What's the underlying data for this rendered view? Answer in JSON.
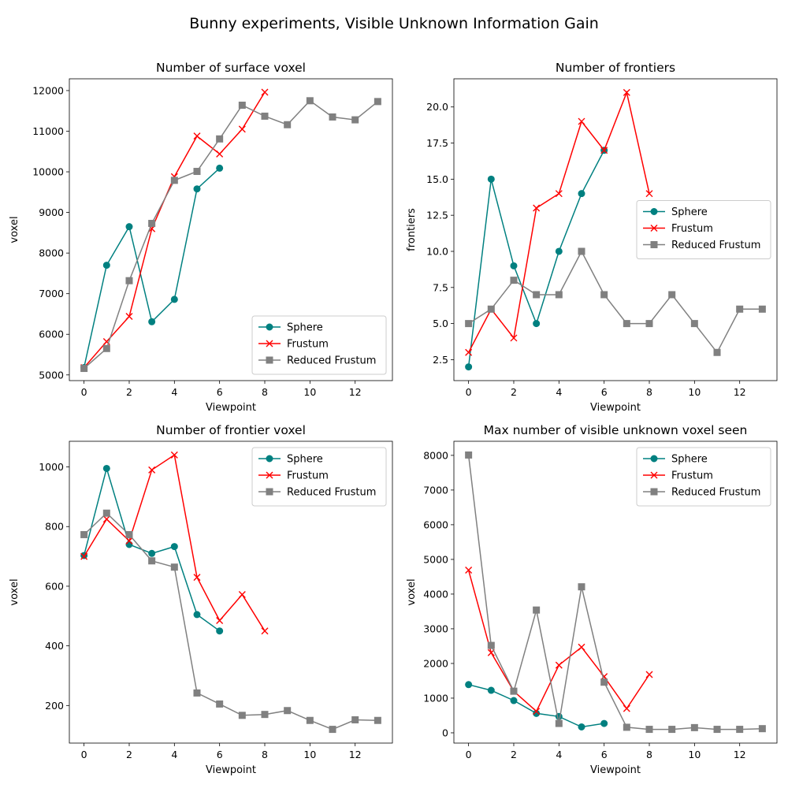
{
  "figure": {
    "suptitle": "Bunny experiments, Visible Unknown Information Gain"
  },
  "colors": {
    "Sphere": "#008080",
    "Frustum": "#ff0000",
    "Reduced Frustum": "#808080"
  },
  "chart_data": [
    {
      "type": "line",
      "title": "Number of surface voxel",
      "xlabel": "Viewpoint",
      "ylabel": "voxel",
      "xlim": [
        -0.65,
        13.65
      ],
      "ylim": [
        4860,
        12290
      ],
      "xticks": [
        0,
        2,
        4,
        6,
        8,
        10,
        12
      ],
      "yticks": [
        5000,
        6000,
        7000,
        8000,
        9000,
        10000,
        11000,
        12000
      ],
      "legend": "lower right",
      "series": [
        {
          "name": "Sphere",
          "marker": "circle",
          "x": [
            0,
            1,
            2,
            3,
            4,
            5,
            6
          ],
          "values": [
            5180,
            7700,
            8650,
            6310,
            6860,
            9580,
            10090
          ]
        },
        {
          "name": "Frustum",
          "marker": "x",
          "x": [
            0,
            1,
            2,
            3,
            4,
            5,
            6,
            7,
            8
          ],
          "values": [
            5180,
            5820,
            6440,
            8600,
            9880,
            10880,
            10440,
            11050,
            11960
          ]
        },
        {
          "name": "Reduced Frustum",
          "marker": "square",
          "x": [
            0,
            1,
            2,
            3,
            4,
            5,
            6,
            7,
            8,
            9,
            10,
            11,
            12,
            13
          ],
          "values": [
            5160,
            5650,
            7320,
            8730,
            9790,
            10010,
            10810,
            11640,
            11370,
            11160,
            11750,
            11350,
            11280,
            11730
          ]
        }
      ]
    },
    {
      "type": "line",
      "title": "Number of frontiers",
      "xlabel": "Viewpoint",
      "ylabel": "frontiers",
      "xlim": [
        -0.65,
        13.65
      ],
      "ylim": [
        1.05,
        21.95
      ],
      "xticks": [
        0,
        2,
        4,
        6,
        8,
        10,
        12
      ],
      "yticks": [
        2.5,
        5.0,
        7.5,
        10.0,
        12.5,
        15.0,
        17.5,
        20.0
      ],
      "ytick_labels": [
        "2.5",
        "5.0",
        "7.5",
        "10.0",
        "12.5",
        "15.0",
        "17.5",
        "20.0"
      ],
      "legend": "center right",
      "series": [
        {
          "name": "Sphere",
          "marker": "circle",
          "x": [
            0,
            1,
            2,
            3,
            4,
            5,
            6
          ],
          "values": [
            2,
            15,
            9,
            5,
            10,
            14,
            17
          ]
        },
        {
          "name": "Frustum",
          "marker": "x",
          "x": [
            0,
            1,
            2,
            3,
            4,
            5,
            6,
            7,
            8
          ],
          "values": [
            3,
            6,
            4,
            13,
            14,
            19,
            17,
            21,
            14
          ]
        },
        {
          "name": "Reduced Frustum",
          "marker": "square",
          "x": [
            0,
            1,
            2,
            3,
            4,
            5,
            6,
            7,
            8,
            9,
            10,
            11,
            12,
            13
          ],
          "values": [
            5,
            6,
            8,
            7,
            7,
            10,
            7,
            5,
            5,
            7,
            5,
            3,
            6,
            6
          ]
        }
      ]
    },
    {
      "type": "line",
      "title": "Number of frontier voxel",
      "xlabel": "Viewpoint",
      "ylabel": "voxel",
      "xlim": [
        -0.65,
        13.65
      ],
      "ylim": [
        74,
        1086
      ],
      "xticks": [
        0,
        2,
        4,
        6,
        8,
        10,
        12
      ],
      "yticks": [
        200,
        400,
        600,
        800,
        1000
      ],
      "legend": "upper right",
      "series": [
        {
          "name": "Sphere",
          "marker": "circle",
          "x": [
            0,
            1,
            2,
            3,
            4,
            5,
            6
          ],
          "values": [
            703,
            995,
            740,
            710,
            733,
            505,
            450
          ]
        },
        {
          "name": "Frustum",
          "marker": "x",
          "x": [
            0,
            1,
            2,
            3,
            4,
            5,
            6,
            7,
            8
          ],
          "values": [
            700,
            825,
            752,
            990,
            1040,
            630,
            485,
            572,
            450
          ]
        },
        {
          "name": "Reduced Frustum",
          "marker": "square",
          "x": [
            0,
            1,
            2,
            3,
            4,
            5,
            6,
            7,
            8,
            9,
            10,
            11,
            12,
            13
          ],
          "values": [
            773,
            845,
            773,
            685,
            664,
            242,
            205,
            167,
            170,
            183,
            150,
            120,
            152,
            150
          ]
        }
      ]
    },
    {
      "type": "line",
      "title": "Max number of visible unknown voxel seen",
      "xlabel": "Viewpoint",
      "ylabel": "voxel",
      "xlim": [
        -0.65,
        13.65
      ],
      "ylim": [
        -296,
        8406
      ],
      "xticks": [
        0,
        2,
        4,
        6,
        8,
        10,
        12
      ],
      "yticks": [
        0,
        1000,
        2000,
        3000,
        4000,
        5000,
        6000,
        7000,
        8000
      ],
      "legend": "upper right",
      "series": [
        {
          "name": "Sphere",
          "marker": "circle",
          "x": [
            0,
            1,
            2,
            3,
            4,
            5,
            6
          ],
          "values": [
            1390,
            1225,
            930,
            560,
            470,
            170,
            270
          ]
        },
        {
          "name": "Frustum",
          "marker": "x",
          "x": [
            0,
            1,
            2,
            3,
            4,
            5,
            6,
            7,
            8
          ],
          "values": [
            4690,
            2310,
            1200,
            620,
            1950,
            2470,
            1620,
            700,
            1680
          ]
        },
        {
          "name": "Reduced Frustum",
          "marker": "square",
          "x": [
            0,
            1,
            2,
            3,
            4,
            5,
            6,
            7,
            8,
            9,
            10,
            11,
            12,
            13
          ],
          "values": [
            8010,
            2520,
            1200,
            3540,
            270,
            4210,
            1460,
            160,
            100,
            100,
            150,
            100,
            100,
            120
          ]
        }
      ]
    }
  ]
}
